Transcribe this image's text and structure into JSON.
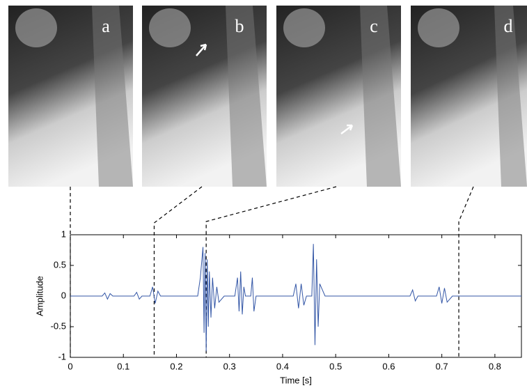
{
  "chart_data": {
    "type": "line",
    "xlabel": "Time [s]",
    "ylabel": "Amplitude",
    "xlim": [
      0,
      0.85
    ],
    "ylim": [
      -1,
      1
    ],
    "xticks": [
      0,
      0.1,
      0.2,
      0.3,
      0.4,
      0.5,
      0.6,
      0.7,
      0.8
    ],
    "yticks": [
      -1,
      -0.5,
      0,
      0.5,
      1
    ],
    "annotations": [
      {
        "label": "a",
        "x": 0
      },
      {
        "label": "b",
        "x": 0.158
      },
      {
        "label": "c",
        "x": 0.256
      },
      {
        "label": "d",
        "x": 0.732
      }
    ],
    "series": [
      {
        "color": "#3356a6",
        "x": [
          0,
          0.06,
          0.065,
          0.07,
          0.075,
          0.08,
          0.12,
          0.125,
          0.13,
          0.135,
          0.15,
          0.155,
          0.16,
          0.165,
          0.17,
          0.24,
          0.245,
          0.25,
          0.252,
          0.254,
          0.256,
          0.258,
          0.26,
          0.262,
          0.265,
          0.268,
          0.272,
          0.276,
          0.28,
          0.29,
          0.31,
          0.315,
          0.318,
          0.321,
          0.324,
          0.327,
          0.33,
          0.34,
          0.343,
          0.346,
          0.35,
          0.37,
          0.42,
          0.425,
          0.43,
          0.435,
          0.44,
          0.445,
          0.455,
          0.458,
          0.461,
          0.464,
          0.467,
          0.47,
          0.48,
          0.64,
          0.645,
          0.65,
          0.655,
          0.69,
          0.695,
          0.7,
          0.705,
          0.71,
          0.72,
          0.85
        ],
        "values": [
          0,
          0,
          0.05,
          -0.05,
          0.04,
          0,
          0,
          0.06,
          -0.05,
          0,
          0,
          0.15,
          -0.12,
          0.08,
          0,
          0,
          0.3,
          0.8,
          -0.6,
          0.7,
          -0.9,
          0.6,
          -0.5,
          0.4,
          -0.35,
          0.3,
          -0.2,
          0.15,
          -0.1,
          0,
          0,
          0.3,
          -0.25,
          0.4,
          -0.3,
          0.15,
          0,
          0,
          0.3,
          -0.25,
          0,
          0,
          0,
          0.2,
          -0.2,
          0.2,
          -0.15,
          0,
          0,
          0.85,
          -0.8,
          0.6,
          -0.5,
          0.2,
          0,
          0,
          0.1,
          -0.08,
          0,
          0,
          0.15,
          -0.12,
          0.13,
          -0.1,
          0,
          0
        ]
      }
    ]
  }
}
